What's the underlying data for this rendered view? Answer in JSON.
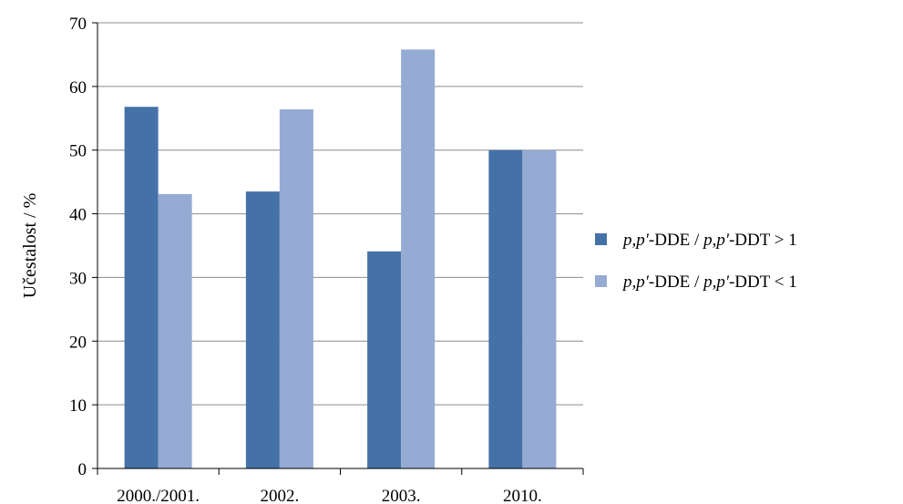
{
  "chart_data": {
    "type": "bar",
    "categories": [
      "2000./2001.",
      "2002.",
      "2003.",
      "2010."
    ],
    "series": [
      {
        "name": "p,p′-DDE / p,p′-DDT > 1",
        "label_parts": [
          "p,p′",
          "-DDE / ",
          "p,p′",
          "-DDT > 1"
        ],
        "color": "#4472a8",
        "values": [
          56.8,
          43.5,
          34.1,
          50.0
        ]
      },
      {
        "name": "p,p′-DDE / p,p′-DDT < 1",
        "label_parts": [
          "p,p′",
          "-DDE / ",
          "p,p′",
          "-DDT < 1"
        ],
        "color": "#95abd3",
        "values": [
          43.1,
          56.4,
          65.8,
          50.0
        ]
      }
    ],
    "title": "",
    "xlabel": "",
    "ylabel": "Učestalost / %",
    "ylim": [
      0,
      70
    ],
    "yticks": [
      0,
      10,
      20,
      30,
      40,
      50,
      60,
      70
    ],
    "grid": true,
    "legend_position": "right",
    "gridline_color": "#8c8c8c"
  }
}
